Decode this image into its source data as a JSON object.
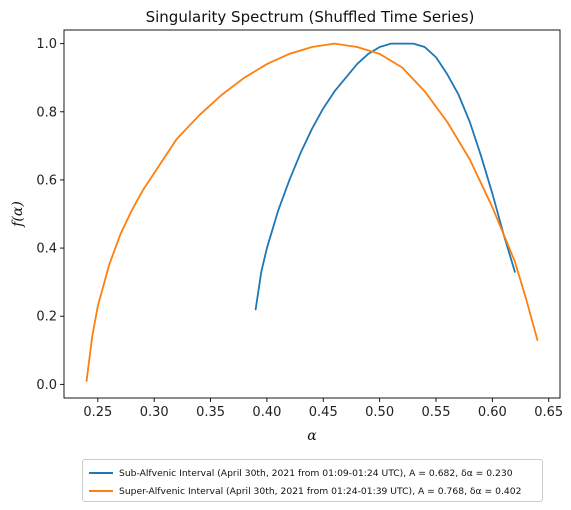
{
  "chart_data": {
    "type": "line",
    "title": "Singularity Spectrum (Shuffled Time Series)",
    "xlabel": "α",
    "ylabel": "f(α)",
    "xlim": [
      0.22,
      0.66
    ],
    "ylim": [
      -0.04,
      1.04
    ],
    "xticks": [
      "0.25",
      "0.30",
      "0.35",
      "0.40",
      "0.45",
      "0.50",
      "0.55",
      "0.60",
      "0.65"
    ],
    "yticks": [
      "0.0",
      "0.2",
      "0.4",
      "0.6",
      "0.8",
      "1.0"
    ],
    "grid": false,
    "legend_position": "below",
    "series": [
      {
        "name": "Sub-Alfvenic Interval (April 30th, 2021 from 01:09-01:24 UTC), A = 0.682, δα = 0.230",
        "color": "#1f77b4",
        "x": [
          0.39,
          0.395,
          0.4,
          0.41,
          0.42,
          0.43,
          0.44,
          0.45,
          0.46,
          0.47,
          0.48,
          0.49,
          0.5,
          0.51,
          0.52,
          0.525,
          0.53,
          0.54,
          0.55,
          0.56,
          0.57,
          0.58,
          0.59,
          0.6,
          0.61,
          0.62
        ],
        "y": [
          0.22,
          0.33,
          0.4,
          0.51,
          0.6,
          0.68,
          0.75,
          0.81,
          0.86,
          0.9,
          0.94,
          0.97,
          0.99,
          1.0,
          1.0,
          1.0,
          1.0,
          0.99,
          0.96,
          0.91,
          0.85,
          0.77,
          0.67,
          0.56,
          0.44,
          0.33
        ]
      },
      {
        "name": "Super-Alfvenic Interval (April 30th, 2021 from 01:24-01:39 UTC), A = 0.768, δα = 0.402",
        "color": "#ff7f0e",
        "x": [
          0.24,
          0.245,
          0.25,
          0.26,
          0.27,
          0.28,
          0.29,
          0.3,
          0.32,
          0.34,
          0.36,
          0.38,
          0.4,
          0.42,
          0.44,
          0.46,
          0.48,
          0.5,
          0.52,
          0.54,
          0.56,
          0.58,
          0.6,
          0.62,
          0.63,
          0.64
        ],
        "y": [
          0.01,
          0.14,
          0.23,
          0.35,
          0.44,
          0.51,
          0.57,
          0.62,
          0.72,
          0.79,
          0.85,
          0.9,
          0.94,
          0.97,
          0.99,
          1.0,
          0.99,
          0.97,
          0.93,
          0.86,
          0.77,
          0.66,
          0.52,
          0.36,
          0.25,
          0.13
        ]
      }
    ]
  }
}
